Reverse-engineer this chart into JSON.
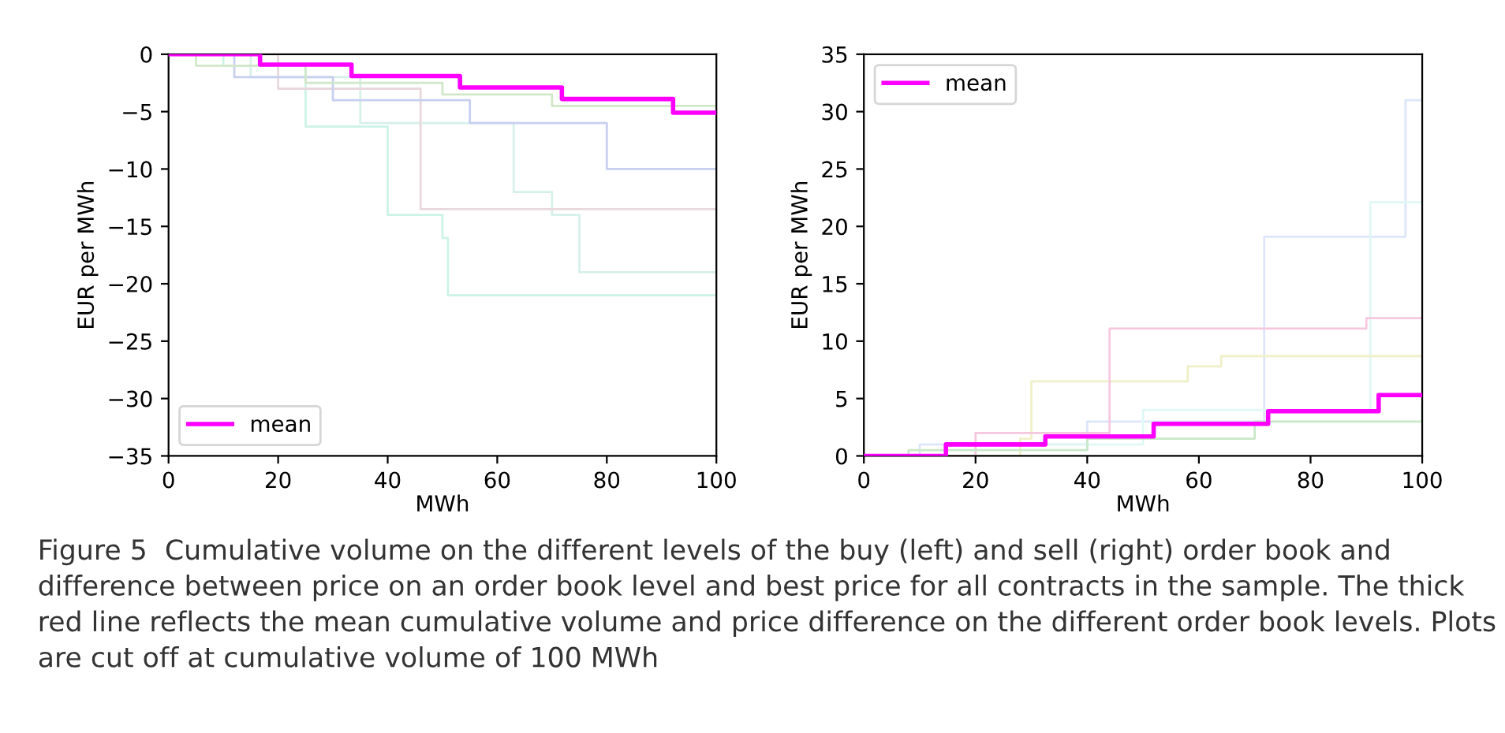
{
  "chart_data": [
    {
      "type": "step",
      "xlabel": "MWh",
      "ylabel": "EUR per MWh",
      "xlim": [
        0,
        100
      ],
      "ylim": [
        -35,
        0
      ],
      "xticks": [
        0,
        20,
        40,
        60,
        80,
        100
      ],
      "yticks": [
        {
          "value": -35,
          "label": "−35"
        },
        {
          "value": -30,
          "label": "−30"
        },
        {
          "value": -25,
          "label": "−25"
        },
        {
          "value": -20,
          "label": "−20"
        },
        {
          "value": -15,
          "label": "−15"
        },
        {
          "value": -10,
          "label": "−10"
        },
        {
          "value": -5,
          "label": "−5"
        },
        0
      ],
      "grid": false,
      "legend": "bottom left",
      "series": [
        {
          "color": "#cdf3e6",
          "x": [
            0,
            10,
            25,
            40,
            50,
            51,
            100
          ],
          "values": [
            0,
            -1,
            -6.3,
            -14,
            -16,
            -21,
            -21
          ]
        },
        {
          "color": "#d6f0ea",
          "x": [
            0,
            15,
            35,
            63,
            70,
            75,
            100
          ],
          "values": [
            0,
            -2,
            -6,
            -12,
            -14,
            -19,
            -19
          ]
        },
        {
          "color": "#e8d8dc",
          "x": [
            0,
            20,
            46,
            100
          ],
          "values": [
            0,
            -3,
            -13.5,
            -13.5
          ]
        },
        {
          "color": "#c8d0f0",
          "x": [
            0,
            12,
            30,
            55,
            80,
            100
          ],
          "values": [
            0,
            -2,
            -4,
            -6,
            -10,
            -10
          ]
        },
        {
          "color": "#d0e8c8",
          "x": [
            0,
            5,
            25,
            50,
            70,
            100
          ],
          "values": [
            0,
            -1,
            -2.5,
            -3.5,
            -4.5,
            -4.5
          ]
        },
        {
          "name": "mean",
          "color": "#ff00ff",
          "x": [
            0,
            16.7,
            33.4,
            53.2,
            71.8,
            92.1,
            100
          ],
          "values": [
            0,
            -0.9,
            -1.9,
            -2.9,
            -3.9,
            -5.1,
            -5.1
          ]
        }
      ]
    },
    {
      "type": "step",
      "xlabel": "MWh",
      "ylabel": "EUR per MWh",
      "xlim": [
        0,
        100
      ],
      "ylim": [
        0,
        35
      ],
      "xticks": [
        0,
        20,
        40,
        60,
        80,
        100
      ],
      "yticks": [
        0,
        5,
        10,
        15,
        20,
        25,
        30,
        35
      ],
      "grid": false,
      "legend": "top left",
      "annotations": [
        "Figure 5  Cumulative volume on the different levels of the buy (left) and sell (right) order book and difference between price on an order book level and best price for all contracts in the sample. The thick red line reflects the mean cumulative volume and price difference on the different order book levels. Plots are cut off at cumulative volume of 100 MWh"
      ],
      "series": [
        {
          "color": "#dde6fb",
          "x": [
            0,
            10,
            40,
            71.7,
            97,
            100
          ],
          "values": [
            0,
            1,
            3,
            19.1,
            31,
            31
          ]
        },
        {
          "color": "#e0f8f4",
          "x": [
            0,
            20,
            50,
            90.7,
            100
          ],
          "values": [
            0,
            1,
            4,
            22.1,
            22.1
          ]
        },
        {
          "color": "#f0f0c8",
          "x": [
            0,
            28,
            30,
            58,
            64,
            100
          ],
          "values": [
            0,
            1.5,
            6.5,
            7.8,
            8.7,
            8.7
          ]
        },
        {
          "color": "#f6c8e0",
          "x": [
            0,
            20,
            44,
            90,
            100
          ],
          "values": [
            0,
            2,
            11.1,
            12,
            12
          ]
        },
        {
          "color": "#c8e8c8",
          "x": [
            0,
            8,
            40,
            70,
            100
          ],
          "values": [
            0,
            0.5,
            1.5,
            3,
            4.5
          ]
        },
        {
          "name": "mean",
          "color": "#ff00ff",
          "x": [
            0,
            14.7,
            32.5,
            51.9,
            72.4,
            92.2,
            100
          ],
          "values": [
            0,
            1,
            1.7,
            2.8,
            3.9,
            5.3,
            5.3
          ]
        }
      ]
    }
  ]
}
